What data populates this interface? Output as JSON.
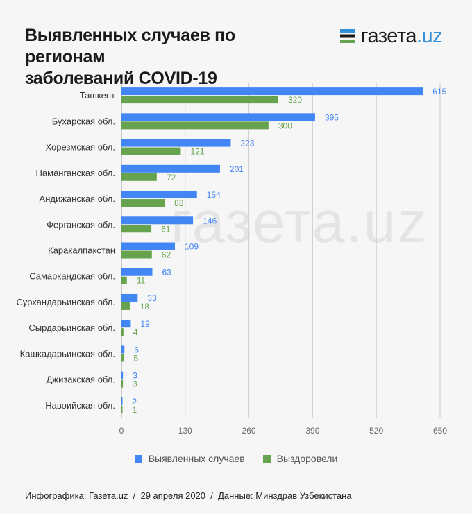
{
  "header": {
    "title_line1": "Выявленных случаев по регионам",
    "title_line2": "заболеваний COVID-19"
  },
  "logo": {
    "main": "газета",
    "suffix": ".uz"
  },
  "watermark": {
    "main": "газета",
    "suffix": ".uz"
  },
  "footer": {
    "source": "Инфографика: Газета.uz",
    "sep1": "  /  ",
    "date": "29 апреля 2020",
    "sep2": "  /  ",
    "data": "Данные: Минздрав Узбекистана"
  },
  "colors": {
    "detected": "#4285f4",
    "recovered": "#67a34f",
    "grid": "#cfcfcf",
    "logo_accent": "#2f8fd8"
  },
  "chart_data": {
    "type": "bar",
    "orientation": "horizontal",
    "title": "Выявленных случаев по регионам заболеваний COVID-19",
    "categories": [
      "Ташкент",
      "Бухарская обл.",
      "Хорезмская обл.",
      "Наманганская обл.",
      "Андижанская обл.",
      "Ферганская обл.",
      "Каракалпакстан",
      "Самаркандская  обл.",
      "Сурхандарьинская обл.",
      "Сырдарьинская обл.",
      "Кашкадарьинская обл.",
      "Джизакская обл.",
      "Навоийская обл."
    ],
    "series": [
      {
        "name": "Выявленных случаев",
        "values": [
          615,
          395,
          223,
          201,
          154,
          146,
          109,
          63,
          33,
          19,
          6,
          3,
          2
        ]
      },
      {
        "name": "Выздоровели",
        "values": [
          320,
          300,
          121,
          72,
          88,
          61,
          62,
          11,
          18,
          4,
          5,
          3,
          1
        ]
      }
    ],
    "xlim": [
      0,
      650
    ],
    "xticks": [
      0,
      130,
      260,
      390,
      520,
      650
    ],
    "xlabel": "",
    "ylabel": "",
    "grid": true,
    "legend": "bottom-center"
  }
}
